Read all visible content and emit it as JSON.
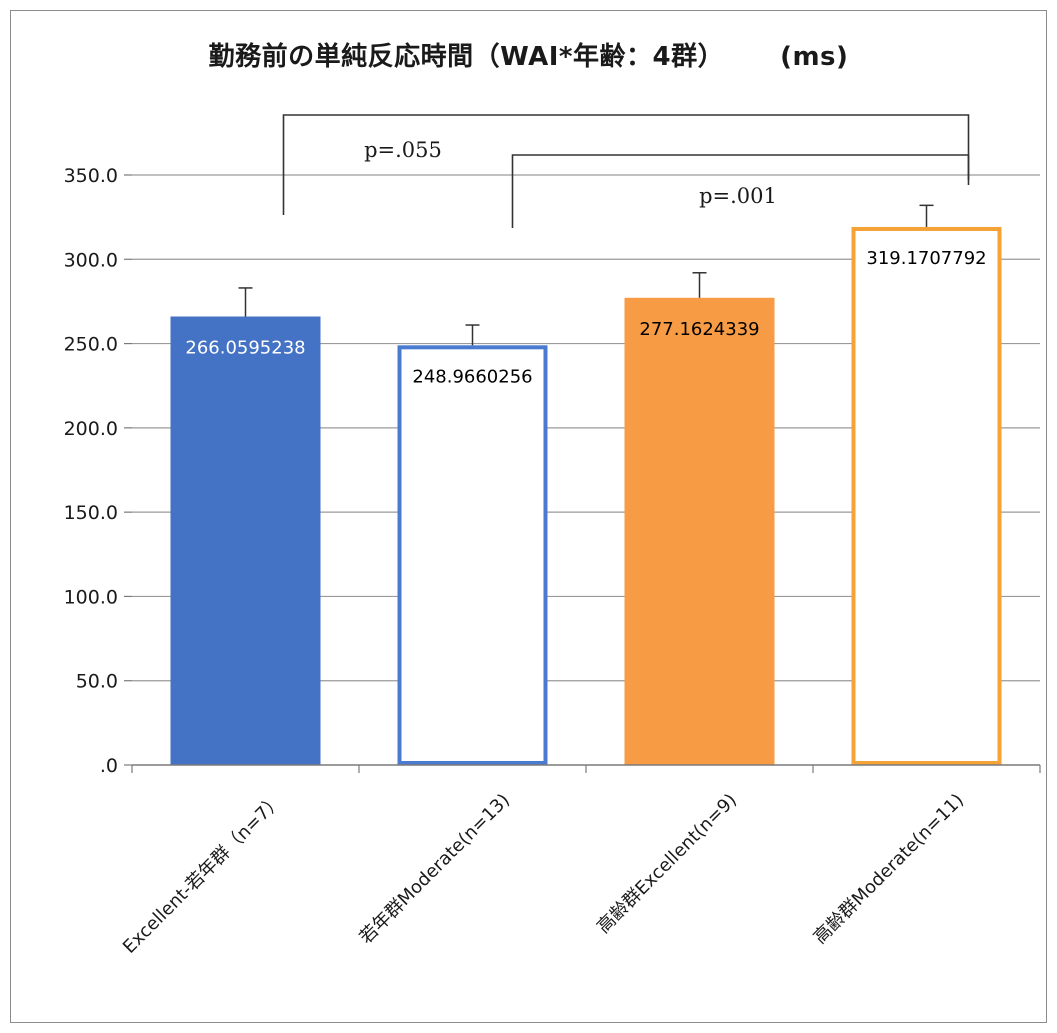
{
  "chart_data": {
    "type": "bar",
    "title": "勤務前の単純反応時間（WAI*年齢：4群）",
    "unit": "(ms)",
    "categories": [
      "Excellent-若年群（n=7）",
      "若年群Moderate(n=13)",
      "高齢群Excellent(n=9)",
      "高齢群Moderate(n=11)"
    ],
    "values": [
      266.0595238,
      248.9660256,
      277.1624339,
      319.1707792
    ],
    "value_labels": [
      "266.0595238",
      "248.9660256",
      "277.1624339",
      "319.1707792"
    ],
    "error_upper": [
      283,
      261,
      292,
      332
    ],
    "ylim": [
      0,
      350
    ],
    "yticks": [
      0,
      50,
      100,
      150,
      200,
      250,
      300,
      350
    ],
    "ytick_labels": [
      ".0",
      "50.0",
      "100.0",
      "150.0",
      "200.0",
      "250.0",
      "300.0",
      "350.0"
    ],
    "grid": true,
    "bar_styles": [
      {
        "fill": "#4472C4",
        "stroke": "#4472C4",
        "label_color": "#ffffff"
      },
      {
        "fill": "#ffffff",
        "stroke": "#4A7BD0",
        "label_color": "#000000"
      },
      {
        "fill": "#F79B45",
        "stroke": "#F79B45",
        "label_color": "#000000"
      },
      {
        "fill": "#ffffff",
        "stroke": "#F5A236",
        "label_color": "#000000"
      }
    ],
    "annotations": [
      {
        "text": "p=.055",
        "from": 0,
        "to": 3
      },
      {
        "text": "p=.001",
        "from": 1,
        "to": 3
      }
    ]
  }
}
